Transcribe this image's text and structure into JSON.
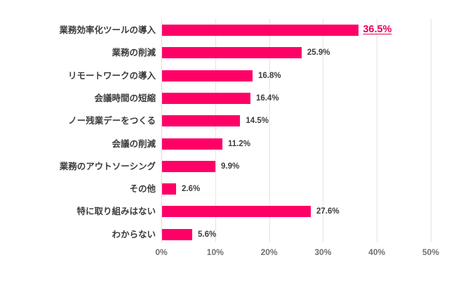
{
  "chart_data": {
    "type": "bar",
    "orientation": "horizontal",
    "title": "",
    "xlabel": "",
    "ylabel": "",
    "xlim": [
      0,
      50
    ],
    "grid": true,
    "legend": null,
    "bar_color": "#ff0066",
    "highlight_color": "#e8005c",
    "categories": [
      "業務効率化ツールの導入",
      "業務の削減",
      "リモートワークの導入",
      "会議時間の短縮",
      "ノー残業デーをつくる",
      "会議の削減",
      "業務のアウトソーシング",
      "その他",
      "特に取り組みはない",
      "わからない"
    ],
    "values": [
      36.5,
      25.9,
      16.8,
      16.4,
      14.5,
      11.2,
      9.9,
      2.6,
      27.6,
      5.6
    ],
    "value_labels": [
      "36.5%",
      "25.9%",
      "16.8%",
      "16.4%",
      "14.5%",
      "11.2%",
      "9.9%",
      "2.6%",
      "27.6%",
      "5.6%"
    ],
    "highlighted_index": 0,
    "x_ticks": [
      0,
      10,
      20,
      30,
      40,
      50
    ],
    "x_tick_labels": [
      "0%",
      "10%",
      "20%",
      "30%",
      "40%",
      "50%"
    ]
  }
}
